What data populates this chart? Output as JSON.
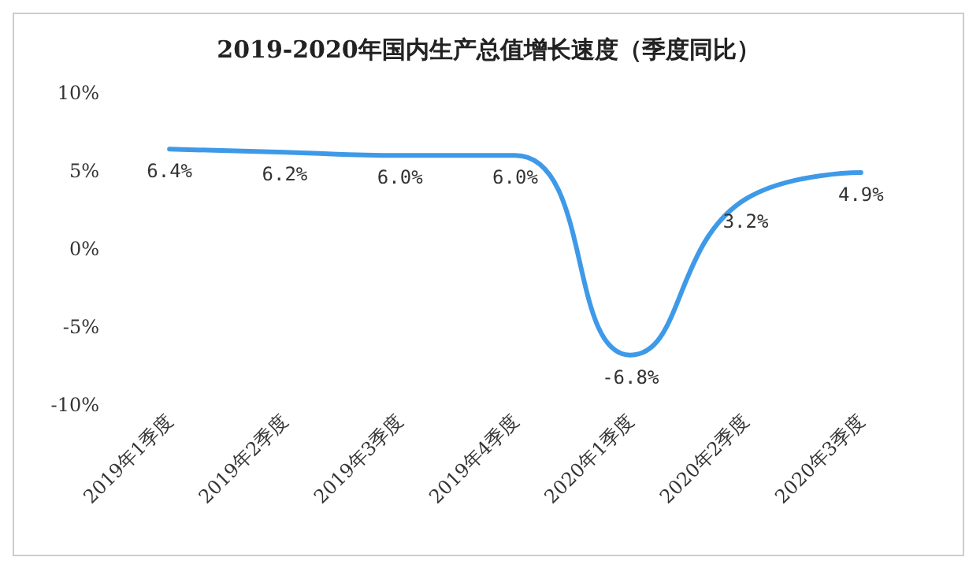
{
  "chart_data": {
    "type": "line",
    "title": "2019-2020年国内生产总值增长速度（季度同比）",
    "categories": [
      "2019年1季度",
      "2019年2季度",
      "2019年3季度",
      "2019年4季度",
      "2020年1季度",
      "2020年2季度",
      "2020年3季度"
    ],
    "series": [
      {
        "color": "#3e9ae8",
        "values": [
          6.4,
          6.2,
          6.0,
          6.0,
          -6.8,
          3.2,
          4.9
        ],
        "value_labels": [
          "6.4%",
          "6.2%",
          "6.0%",
          "6.0%",
          "-6.8%",
          "3.2%",
          "4.9%"
        ]
      }
    ],
    "ylim": [
      -10,
      10
    ],
    "yticks": [
      {
        "value": -10,
        "label": "-10%"
      },
      {
        "value": -5,
        "label": "-5%"
      },
      {
        "value": 0,
        "label": "0%"
      },
      {
        "value": 5,
        "label": "5%"
      },
      {
        "value": 10,
        "label": "10%"
      }
    ],
    "grid": false,
    "marker": "none",
    "line_style": "solid"
  }
}
